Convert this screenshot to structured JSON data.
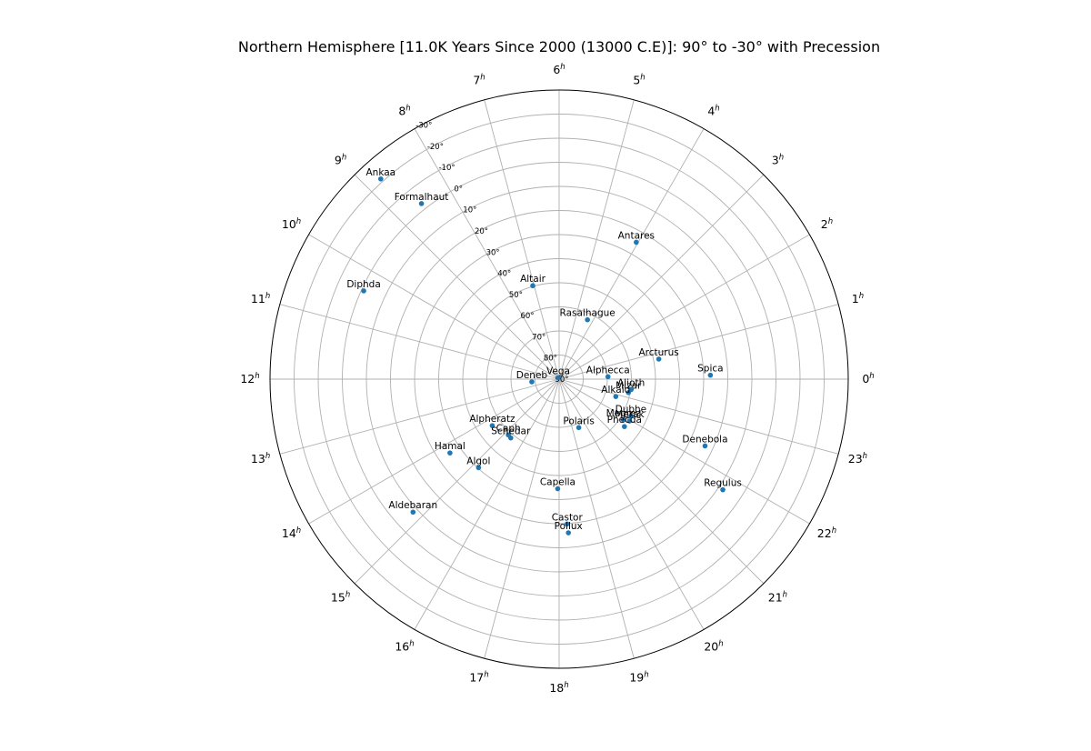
{
  "chart_data": {
    "type": "scatter",
    "projection": "polar",
    "title": "Northern Hemisphere [11.0K Years Since 2000 (13000 C.E)]: 90° to -30° with Precession",
    "radial_axis": {
      "quantity": "declination",
      "range_deg": [
        90,
        -30
      ],
      "center": 90
    },
    "dec_ticks": [
      {
        "value": 90,
        "label": "90°"
      },
      {
        "value": 80,
        "label": "80°"
      },
      {
        "value": 70,
        "label": "70°"
      },
      {
        "value": 60,
        "label": "60°"
      },
      {
        "value": 50,
        "label": "50°"
      },
      {
        "value": 40,
        "label": "40°"
      },
      {
        "value": 30,
        "label": "30°"
      },
      {
        "value": 20,
        "label": "20°"
      },
      {
        "value": 10,
        "label": "10°"
      },
      {
        "value": 0,
        "label": "0°"
      },
      {
        "value": -10,
        "label": "-10°"
      },
      {
        "value": -20,
        "label": "-20°"
      },
      {
        "value": -30,
        "label": "-30°"
      }
    ],
    "ra_ticks": [
      {
        "hour": 0,
        "label": "0"
      },
      {
        "hour": 1,
        "label": "1"
      },
      {
        "hour": 2,
        "label": "2"
      },
      {
        "hour": 3,
        "label": "3"
      },
      {
        "hour": 4,
        "label": "4"
      },
      {
        "hour": 5,
        "label": "5"
      },
      {
        "hour": 6,
        "label": "6"
      },
      {
        "hour": 7,
        "label": "7"
      },
      {
        "hour": 8,
        "label": "8"
      },
      {
        "hour": 9,
        "label": "9"
      },
      {
        "hour": 10,
        "label": "10"
      },
      {
        "hour": 11,
        "label": "11"
      },
      {
        "hour": 12,
        "label": "12"
      },
      {
        "hour": 13,
        "label": "13"
      },
      {
        "hour": 14,
        "label": "14"
      },
      {
        "hour": 15,
        "label": "15"
      },
      {
        "hour": 16,
        "label": "16"
      },
      {
        "hour": 17,
        "label": "17"
      },
      {
        "hour": 18,
        "label": "18"
      },
      {
        "hour": 19,
        "label": "19"
      },
      {
        "hour": 20,
        "label": "20"
      },
      {
        "hour": 21,
        "label": "21"
      },
      {
        "hour": 22,
        "label": "22"
      },
      {
        "hour": 23,
        "label": "23"
      }
    ],
    "hour_superscript": "h",
    "grid": true,
    "marker_color": "#1f77b4",
    "grid_color": "#b0b0b0",
    "stars": [
      {
        "name": "Ankaa",
        "ra_h": 8.78,
        "dec": -21.3
      },
      {
        "name": "Formalhaut",
        "ra_h": 8.54,
        "dec": -2.6
      },
      {
        "name": "Diphda",
        "ra_h": 10.38,
        "dec": 1.0
      },
      {
        "name": "Altair",
        "ra_h": 7.05,
        "dec": 49.7
      },
      {
        "name": "Rasalhague",
        "ra_h": 4.3,
        "dec": 62.7
      },
      {
        "name": "Antares",
        "ra_h": 4.04,
        "dec": 24.8
      },
      {
        "name": "Arcturus",
        "ra_h": 0.76,
        "dec": 47.8
      },
      {
        "name": "Spica",
        "ra_h": 0.1,
        "dec": 27.2
      },
      {
        "name": "Alphecca",
        "ra_h": 0.19,
        "dec": 69.7
      },
      {
        "name": "Vega",
        "ra_h": 8.1,
        "dec": 89.3
      },
      {
        "name": "Deneb",
        "ra_h": 12.38,
        "dec": 78.6
      },
      {
        "name": "Mizar",
        "ra_h": 23.27,
        "dec": 60.7
      },
      {
        "name": "Alioth",
        "ra_h": 23.45,
        "dec": 59.8
      },
      {
        "name": "Alkaid",
        "ra_h": 22.86,
        "dec": 65.4
      },
      {
        "name": "Dubhe",
        "ra_h": 22.18,
        "dec": 56.5
      },
      {
        "name": "Merak",
        "ra_h": 21.95,
        "dec": 56.0
      },
      {
        "name": "Megrez",
        "ra_h": 21.84,
        "dec": 58.4
      },
      {
        "name": "Phecda",
        "ra_h": 21.6,
        "dec": 56.5
      },
      {
        "name": "Polaris",
        "ra_h": 19.47,
        "dec": 68.3
      },
      {
        "name": "Denebola",
        "ra_h": 22.36,
        "dec": 23.4
      },
      {
        "name": "Regulus",
        "ra_h": 21.73,
        "dec": 8.0
      },
      {
        "name": "Alpheratz",
        "ra_h": 14.32,
        "dec": 56.2
      },
      {
        "name": "Caph",
        "ra_h": 15.18,
        "dec": 58.7
      },
      {
        "name": "Schedar",
        "ra_h": 15.37,
        "dec": 58.4
      },
      {
        "name": "Hamal",
        "ra_h": 14.27,
        "dec": 35.3
      },
      {
        "name": "Algol",
        "ra_h": 15.18,
        "dec": 40.3
      },
      {
        "name": "Aldebaran",
        "ra_h": 14.82,
        "dec": 8.0
      },
      {
        "name": "Capella",
        "ra_h": 17.95,
        "dec": 44.5
      },
      {
        "name": "Castor",
        "ra_h": 18.21,
        "dec": 29.8
      },
      {
        "name": "Pollux",
        "ra_h": 18.23,
        "dec": 26.1
      }
    ]
  }
}
